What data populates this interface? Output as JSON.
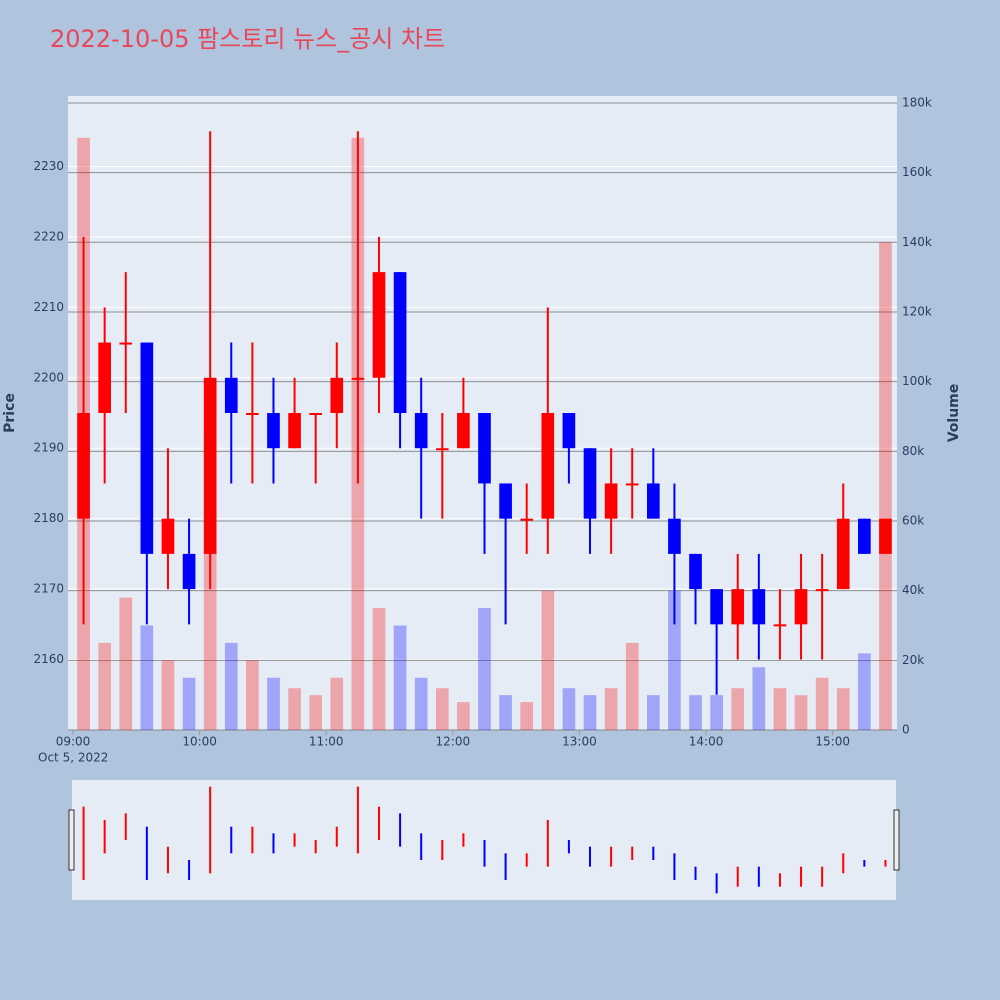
{
  "chart_data": {
    "type": "candlestick",
    "title": "2022-10-05 팜스토리 뉴스_공시 차트",
    "y_label": "Price",
    "y2_label": "Volume",
    "x_sublabel": "Oct 5, 2022",
    "up_color": "#ff0000",
    "down_color": "#0000ff",
    "x": [
      "09:00",
      "09:10",
      "09:20",
      "09:30",
      "09:40",
      "09:50",
      "10:00",
      "10:10",
      "10:20",
      "10:30",
      "10:40",
      "10:50",
      "11:00",
      "11:10",
      "11:20",
      "11:30",
      "11:40",
      "11:50",
      "12:00",
      "12:10",
      "12:20",
      "12:30",
      "12:40",
      "12:50",
      "13:00",
      "13:10",
      "13:20",
      "13:30",
      "13:40",
      "13:50",
      "14:00",
      "14:10",
      "14:20",
      "14:30",
      "14:40",
      "14:50",
      "15:00",
      "15:10",
      "15:20"
    ],
    "open": [
      2180,
      2195,
      2205,
      2205,
      2175,
      2175,
      2175,
      2200,
      2195,
      2195,
      2190,
      2195,
      2195,
      2200,
      2200,
      2215,
      2195,
      2190,
      2190,
      2195,
      2185,
      2180,
      2180,
      2195,
      2190,
      2180,
      2185,
      2185,
      2180,
      2175,
      2170,
      2165,
      2170,
      2165,
      2165,
      2170,
      2170,
      2180,
      2175
    ],
    "high": [
      2220,
      2210,
      2215,
      2205,
      2190,
      2180,
      2235,
      2205,
      2205,
      2200,
      2200,
      2195,
      2205,
      2235,
      2220,
      2215,
      2200,
      2195,
      2200,
      2195,
      2185,
      2185,
      2210,
      2195,
      2190,
      2190,
      2190,
      2190,
      2185,
      2175,
      2170,
      2175,
      2175,
      2170,
      2175,
      2175,
      2185,
      2180,
      2180
    ],
    "low": [
      2165,
      2185,
      2195,
      2165,
      2170,
      2165,
      2170,
      2185,
      2185,
      2185,
      2190,
      2185,
      2190,
      2185,
      2195,
      2190,
      2180,
      2180,
      2190,
      2175,
      2165,
      2175,
      2175,
      2185,
      2175,
      2175,
      2180,
      2180,
      2165,
      2165,
      2155,
      2160,
      2160,
      2160,
      2160,
      2160,
      2170,
      2175,
      2175
    ],
    "close": [
      2195,
      2205,
      2205,
      2175,
      2180,
      2170,
      2200,
      2195,
      2195,
      2190,
      2195,
      2195,
      2200,
      2200,
      2215,
      2195,
      2190,
      2190,
      2195,
      2185,
      2180,
      2180,
      2195,
      2190,
      2180,
      2185,
      2185,
      2180,
      2175,
      2170,
      2165,
      2170,
      2165,
      2165,
      2170,
      2170,
      2180,
      2175,
      2180
    ],
    "volume": [
      170000,
      25000,
      38000,
      30000,
      20000,
      15000,
      85000,
      25000,
      20000,
      15000,
      12000,
      10000,
      15000,
      170000,
      35000,
      30000,
      15000,
      12000,
      8000,
      35000,
      10000,
      8000,
      40000,
      12000,
      10000,
      12000,
      25000,
      10000,
      40000,
      10000,
      10000,
      12000,
      18000,
      12000,
      10000,
      15000,
      12000,
      22000,
      140000
    ],
    "xlim": [
      "09:00",
      "15:30"
    ],
    "xticks": [
      "09:00",
      "10:00",
      "11:00",
      "12:00",
      "13:00",
      "14:00",
      "15:00"
    ],
    "ylim": [
      2150,
      2240
    ],
    "yticks": [
      2160,
      2170,
      2180,
      2190,
      2200,
      2210,
      2220,
      2230
    ],
    "y2lim": [
      0,
      182000
    ],
    "y2ticks": [
      0,
      {
        "value": 20000,
        "label": "20k"
      },
      {
        "value": 40000,
        "label": "40k"
      },
      {
        "value": 60000,
        "label": "60k"
      },
      {
        "value": 80000,
        "label": "80k"
      },
      {
        "value": 100000,
        "label": "100k"
      },
      {
        "value": 120000,
        "label": "120k"
      },
      {
        "value": 140000,
        "label": "140k"
      },
      {
        "value": 160000,
        "label": "160k"
      },
      {
        "value": 180000,
        "label": "180k"
      }
    ],
    "grid": true
  }
}
